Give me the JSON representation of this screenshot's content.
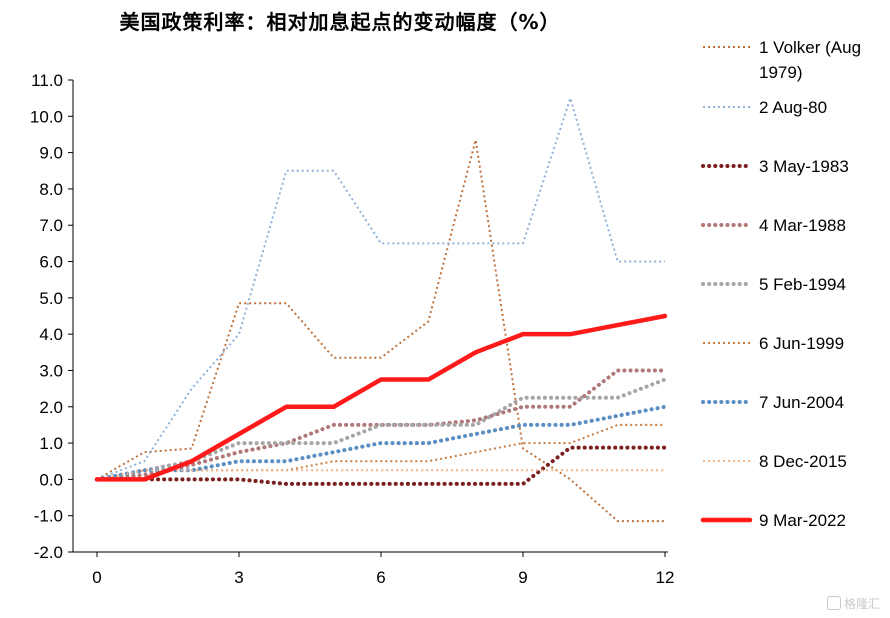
{
  "chart_data": {
    "type": "line",
    "title": "美国政策利率：相对加息起点的变动幅度（%）",
    "xlabel": "",
    "ylabel": "",
    "xlim": [
      0,
      12
    ],
    "ylim": [
      -2.0,
      11.0
    ],
    "x_ticks": [
      "0",
      "3",
      "6",
      "9",
      "12"
    ],
    "y_ticks": [
      "-2.0",
      "-1.0",
      "0.0",
      "1.0",
      "2.0",
      "3.0",
      "4.0",
      "5.0",
      "6.0",
      "7.0",
      "8.0",
      "9.0",
      "10.0",
      "11.0"
    ],
    "grid": false,
    "legend_position": "right",
    "x": [
      0,
      1,
      2,
      3,
      4,
      5,
      6,
      7,
      8,
      9,
      10,
      11,
      12
    ],
    "series": [
      {
        "name": "1 Volker (Aug 1979)",
        "color": "#c0703a",
        "style": "dotted-thin",
        "values": [
          0,
          0.75,
          0.85,
          4.85,
          4.85,
          3.35,
          3.35,
          4.35,
          9.35,
          0.85,
          0.0,
          -1.15,
          -1.15
        ]
      },
      {
        "name": "2 Aug-80",
        "color": "#8fb1da",
        "style": "dotted-thin",
        "values": [
          0,
          0.5,
          2.5,
          4.0,
          8.5,
          8.5,
          6.5,
          6.5,
          6.5,
          6.5,
          10.5,
          6.0,
          6.0
        ]
      },
      {
        "name": "3 May-1983",
        "color": "#7b1f1f",
        "style": "dotted-thick",
        "values": [
          0,
          0,
          0,
          0,
          -0.125,
          -0.125,
          -0.125,
          -0.125,
          -0.125,
          -0.125,
          0.875,
          0.875,
          0.875
        ]
      },
      {
        "name": "4 Mar-1988",
        "color": "#b07878",
        "style": "dotted-thick",
        "values": [
          0,
          0.125,
          0.4,
          0.75,
          1.0,
          1.5,
          1.5,
          1.5,
          1.625,
          2.0,
          2.0,
          3.0,
          3.0
        ]
      },
      {
        "name": "5 Feb-1994",
        "color": "#a6a6a6",
        "style": "dotted-thick",
        "values": [
          0,
          0.25,
          0.5,
          1.0,
          1.0,
          1.0,
          1.5,
          1.5,
          1.5,
          2.25,
          2.25,
          2.25,
          2.75
        ]
      },
      {
        "name": "6 Jun-1999",
        "color": "#c87c40",
        "style": "dotted-thin",
        "values": [
          0,
          0.25,
          0.25,
          0.25,
          0.25,
          0.5,
          0.5,
          0.5,
          0.75,
          1.0,
          1.0,
          1.5,
          1.5
        ]
      },
      {
        "name": "7 Jun-2004",
        "color": "#5b8fc4",
        "style": "dotted-thick",
        "values": [
          0,
          0.25,
          0.25,
          0.5,
          0.5,
          0.75,
          1.0,
          1.0,
          1.25,
          1.5,
          1.5,
          1.75,
          2.0
        ]
      },
      {
        "name": "8 Dec-2015",
        "color": "#f2b48a",
        "style": "dotted-thin",
        "values": [
          0,
          0.25,
          0.25,
          0.25,
          0.25,
          0.25,
          0.25,
          0.25,
          0.25,
          0.25,
          0.25,
          0.25,
          0.25
        ]
      },
      {
        "name": "9 Mar-2022",
        "color": "#ff1a1a",
        "style": "solid-thick",
        "values": [
          0,
          0,
          0.5,
          1.25,
          2.0,
          2.0,
          2.75,
          2.75,
          3.5,
          4.0,
          4.0,
          4.25,
          4.5
        ]
      }
    ],
    "legend_labels": [
      [
        "1 Volker (Aug",
        "1979)"
      ],
      [
        "2 Aug-80"
      ],
      [
        "3 May-1983"
      ],
      [
        "4 Mar-1988"
      ],
      [
        "5 Feb-1994"
      ],
      [
        "6 Jun-1999"
      ],
      [
        "7 Jun-2004"
      ],
      [
        "8 Dec-2015"
      ],
      [
        "9 Mar-2022"
      ]
    ]
  },
  "watermark": {
    "text": "格隆汇"
  }
}
